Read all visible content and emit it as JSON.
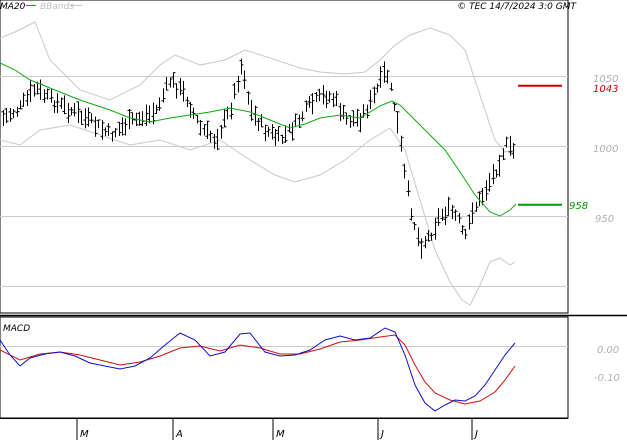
{
  "header": {
    "legend_ma": "MA20",
    "legend_bb": "BBands",
    "source": "© TEC 14/7/2024 3:0 GMT"
  },
  "colors": {
    "price": "#000000",
    "ma": "#11aa11",
    "bbands": "#c8c8c8",
    "resistance": "#cc0000",
    "support": "#009900",
    "macd": "#1010cc",
    "signal": "#cc1010",
    "grid": "#cccccc"
  },
  "chart_data": [
    {
      "type": "ohlc",
      "ylim": [
        888,
        1074
      ],
      "yticks": [
        950,
        1000,
        1050
      ],
      "ytick_labels": [
        "950",
        "1000",
        "1050"
      ],
      "xtick_labels": [
        "M",
        "A",
        "M",
        "J",
        "J"
      ],
      "series": [
        {
          "name": "MA20",
          "kind": "line"
        },
        {
          "name": "BBands",
          "kind": "band"
        }
      ],
      "levels": [
        {
          "value": 1043,
          "label": "1043",
          "color": "#cc0000"
        },
        {
          "value": 958,
          "label": "958",
          "color": "#009900"
        }
      ]
    },
    {
      "type": "line",
      "title": "MACD",
      "ylim": [
        -0.17,
        0.045
      ],
      "yticks": [
        0.0,
        -0.1
      ],
      "ytick_labels": [
        "0.00",
        "-0.10"
      ]
    }
  ]
}
